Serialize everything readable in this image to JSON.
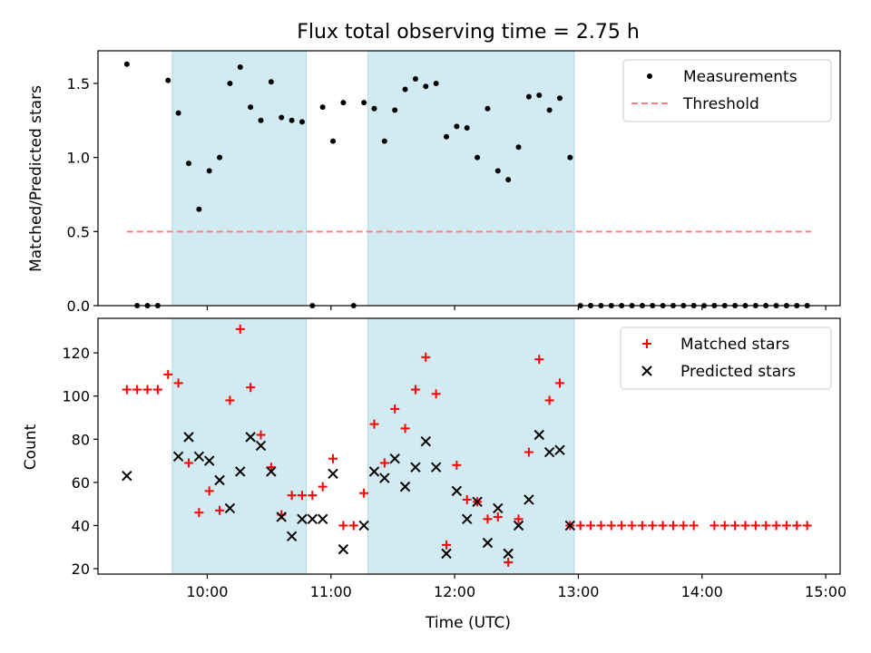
{
  "figure": {
    "title": "Flux total observing time = 2.75 h",
    "xlabel": "Time (UTC)",
    "x_ticks": [
      "10:00",
      "11:00",
      "12:00",
      "13:00",
      "14:00",
      "15:00"
    ]
  },
  "colors": {
    "span": "#add8e6",
    "threshold": "#ff8080",
    "matched": "#ff0000",
    "predicted": "#000000",
    "measurement": "#000000"
  },
  "chart_data": [
    {
      "type": "scatter",
      "panel": "top",
      "ylabel": "Matched/Predicted stars",
      "xlim": [
        "09:07",
        "15:07"
      ],
      "ylim": [
        0,
        1.72
      ],
      "y_ticks": [
        "0.0",
        "0.5",
        "1.0",
        "1.5"
      ],
      "y_tick_values": [
        0,
        0.5,
        1.0,
        1.5
      ],
      "shaded_spans": [
        [
          "09:43",
          "10:48"
        ],
        [
          "11:18",
          "12:58"
        ]
      ],
      "legend_position": "top-right",
      "legend": [
        "Measurements",
        "Threshold"
      ],
      "threshold": {
        "name": "Threshold",
        "y": 0.5,
        "x": [
          "09:21",
          "14:53"
        ]
      },
      "series": [
        {
          "name": "Measurements",
          "x": [
            "09:21",
            "09:26",
            "09:31",
            "09:36",
            "09:41",
            "09:46",
            "09:51",
            "09:56",
            "10:01",
            "10:06",
            "10:11",
            "10:16",
            "10:21",
            "10:26",
            "10:31",
            "10:36",
            "10:41",
            "10:46",
            "10:51",
            "10:56",
            "11:01",
            "11:06",
            "11:11",
            "11:16",
            "11:21",
            "11:26",
            "11:31",
            "11:36",
            "11:41",
            "11:46",
            "11:51",
            "11:56",
            "12:01",
            "12:06",
            "12:11",
            "12:16",
            "12:21",
            "12:26",
            "12:31",
            "12:36",
            "12:41",
            "12:46",
            "12:51",
            "12:56",
            "13:01",
            "13:06",
            "13:11",
            "13:16",
            "13:21",
            "13:26",
            "13:31",
            "13:36",
            "13:41",
            "13:46",
            "13:51",
            "13:56",
            "14:01",
            "14:06",
            "14:11",
            "14:16",
            "14:21",
            "14:26",
            "14:31",
            "14:36",
            "14:41",
            "14:46",
            "14:51"
          ],
          "y": [
            1.63,
            0,
            0,
            0,
            1.52,
            1.3,
            0.96,
            0.65,
            0.91,
            1.0,
            1.5,
            1.61,
            1.34,
            1.25,
            1.51,
            1.27,
            1.25,
            1.24,
            0,
            1.34,
            1.11,
            1.37,
            0,
            1.37,
            1.33,
            1.11,
            1.32,
            1.46,
            1.53,
            1.48,
            1.5,
            1.14,
            1.21,
            1.2,
            1.0,
            1.33,
            0.91,
            0.85,
            1.07,
            1.41,
            1.42,
            1.32,
            1.4,
            1.0,
            0,
            0,
            0,
            0,
            0,
            0,
            0,
            0,
            0,
            0,
            0,
            0,
            0,
            0,
            0,
            0,
            0,
            0,
            0,
            0,
            0,
            0,
            0
          ]
        }
      ]
    },
    {
      "type": "scatter",
      "panel": "bottom",
      "ylabel": "Count",
      "xlim": [
        "09:07",
        "15:07"
      ],
      "ylim": [
        17.5,
        136
      ],
      "y_ticks": [
        "20",
        "40",
        "60",
        "80",
        "100",
        "120"
      ],
      "y_tick_values": [
        20,
        40,
        60,
        80,
        100,
        120
      ],
      "shaded_spans": [
        [
          "09:43",
          "10:48"
        ],
        [
          "11:18",
          "12:58"
        ]
      ],
      "legend_position": "top-right",
      "legend": [
        "Matched stars",
        "Predicted stars"
      ],
      "series": [
        {
          "name": "Matched stars",
          "x": [
            "09:21",
            "09:26",
            "09:31",
            "09:36",
            "09:41",
            "09:46",
            "09:51",
            "09:56",
            "10:01",
            "10:06",
            "10:11",
            "10:16",
            "10:21",
            "10:26",
            "10:31",
            "10:36",
            "10:41",
            "10:46",
            "10:51",
            "10:56",
            "11:01",
            "11:06",
            "11:11",
            "11:16",
            "11:21",
            "11:26",
            "11:31",
            "11:36",
            "11:41",
            "11:46",
            "11:51",
            "11:56",
            "12:01",
            "12:06",
            "12:11",
            "12:16",
            "12:21",
            "12:26",
            "12:31",
            "12:36",
            "12:41",
            "12:46",
            "12:51",
            "12:56",
            "13:01",
            "13:06",
            "13:11",
            "13:16",
            "13:21",
            "13:26",
            "13:31",
            "13:36",
            "13:41",
            "13:46",
            "13:51",
            "13:56",
            "14:06",
            "14:11",
            "14:16",
            "14:21",
            "14:26",
            "14:31",
            "14:36",
            "14:41",
            "14:46",
            "14:51"
          ],
          "y": [
            103,
            103,
            103,
            103,
            110,
            106,
            69,
            46,
            56,
            47,
            98,
            131,
            104,
            82,
            67,
            45,
            54,
            54,
            54,
            58,
            71,
            40,
            40,
            55,
            87,
            69,
            94,
            85,
            103,
            118,
            101,
            31,
            68,
            52,
            51,
            43,
            44,
            23,
            43,
            74,
            117,
            98,
            106,
            40,
            40,
            40,
            40,
            40,
            40,
            40,
            40,
            40,
            40,
            40,
            40,
            40,
            40,
            40,
            40,
            40,
            40,
            40,
            40,
            40,
            40,
            40
          ]
        },
        {
          "name": "Predicted stars",
          "x": [
            "09:21",
            "09:46",
            "09:51",
            "09:56",
            "10:01",
            "10:06",
            "10:11",
            "10:16",
            "10:21",
            "10:26",
            "10:31",
            "10:36",
            "10:41",
            "10:46",
            "10:51",
            "10:56",
            "11:01",
            "11:06",
            "11:16",
            "11:21",
            "11:26",
            "11:31",
            "11:36",
            "11:41",
            "11:46",
            "11:51",
            "11:56",
            "12:01",
            "12:06",
            "12:11",
            "12:16",
            "12:21",
            "12:26",
            "12:31",
            "12:36",
            "12:41",
            "12:46",
            "12:51",
            "12:56"
          ],
          "y": [
            63,
            72,
            81,
            72,
            70,
            61,
            48,
            65,
            81,
            77,
            65,
            44,
            35,
            43,
            43,
            43,
            64,
            29,
            40,
            65,
            62,
            71,
            58,
            67,
            79,
            67,
            27,
            56,
            43,
            51,
            32,
            48,
            27,
            40,
            52,
            82,
            74,
            75,
            40
          ]
        }
      ]
    }
  ]
}
